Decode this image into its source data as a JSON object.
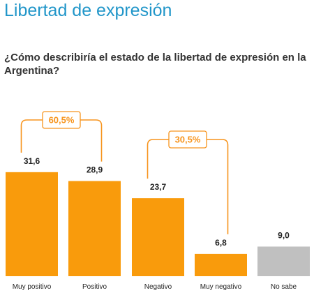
{
  "header": {
    "title": "Libertad de expresión",
    "subtitle": "¿Cómo describiría el estado de la libertad de expresión en la Argentina?"
  },
  "chart_data": {
    "type": "bar",
    "categories": [
      "Muy positivo",
      "Positivo",
      "Negativo",
      "Muy negativo",
      "No sabe"
    ],
    "values": [
      31.6,
      28.9,
      23.7,
      6.8,
      9.0
    ],
    "value_labels": [
      "31,6",
      "28,9",
      "23,7",
      "6,8",
      "9,0"
    ],
    "colors": [
      "#f99b0c",
      "#f99b0c",
      "#f99b0c",
      "#f99b0c",
      "#c0c0c0"
    ],
    "annotations": [
      {
        "label": "60,5%",
        "categories": [
          "Muy positivo",
          "Positivo"
        ],
        "color": "#f7941d"
      },
      {
        "label": "30,5%",
        "categories": [
          "Negativo",
          "Muy negativo"
        ],
        "color": "#f7941d"
      }
    ],
    "grid": false,
    "legend": "none"
  }
}
